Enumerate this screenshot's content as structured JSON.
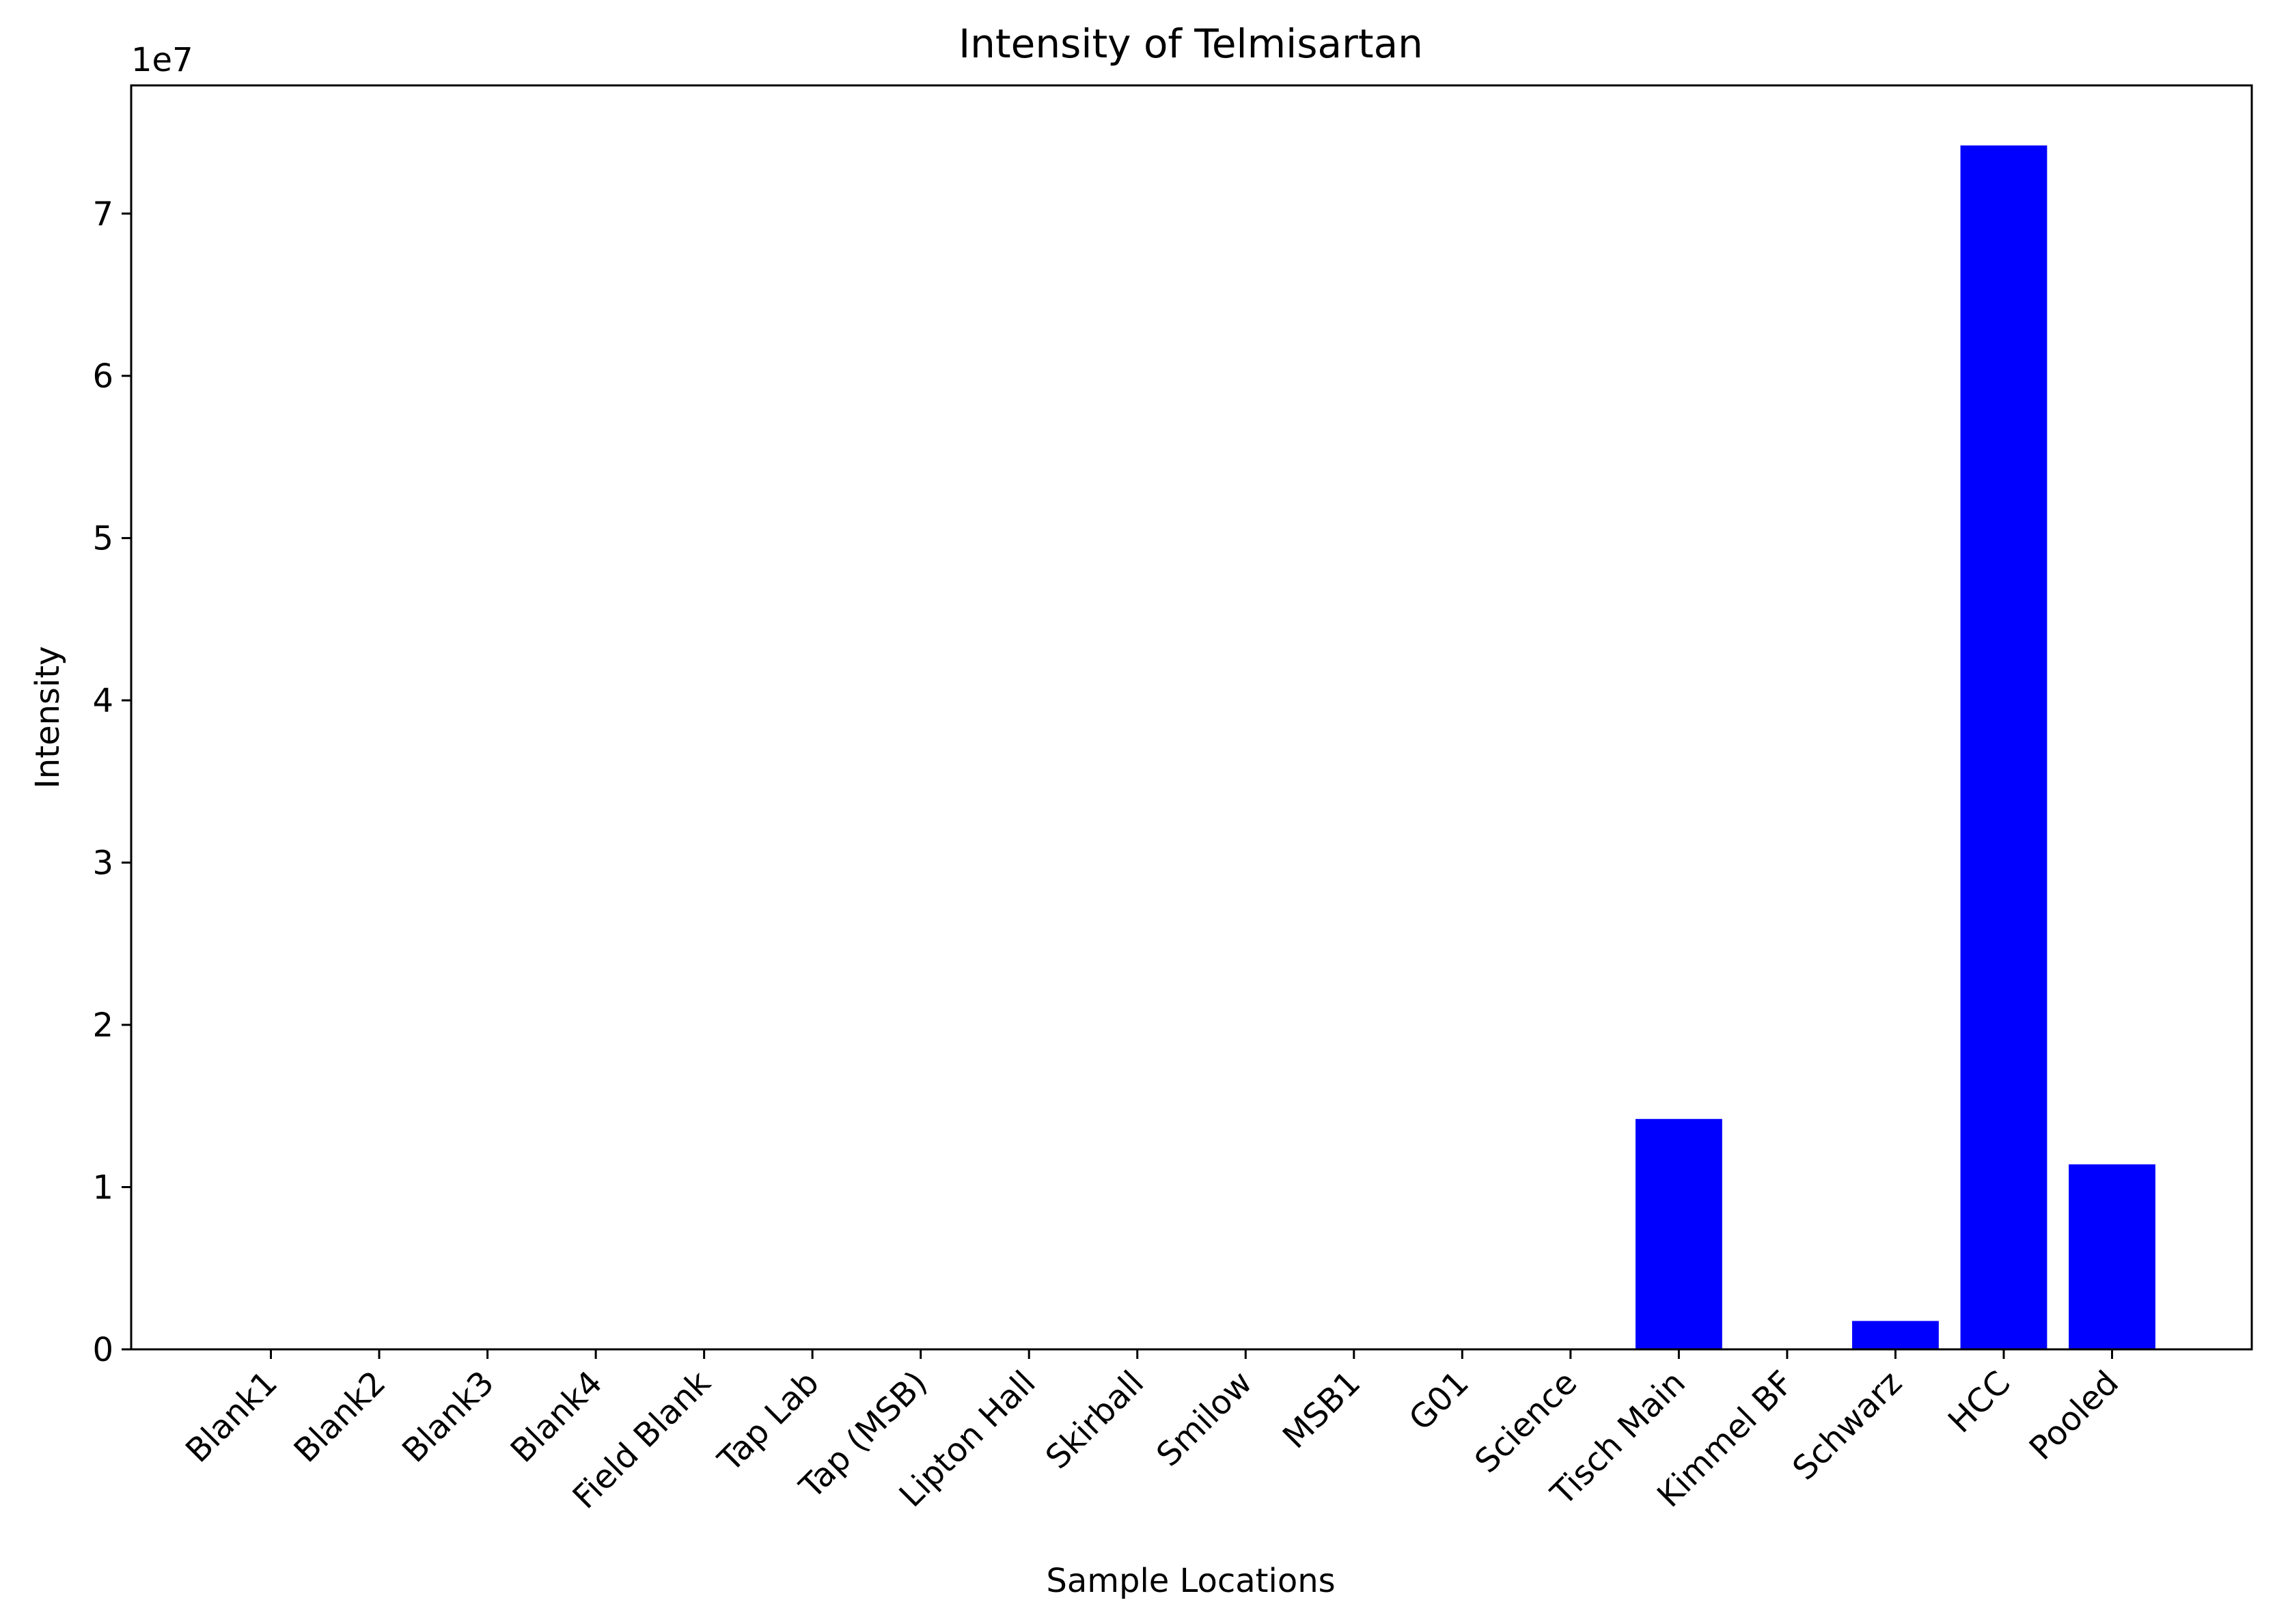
{
  "chart_data": {
    "type": "bar",
    "title": "Intensity of Telmisartan",
    "xlabel": "Sample Locations",
    "ylabel": "Intensity",
    "offset_label": "1e7",
    "categories": [
      "Blank1",
      "Blank2",
      "Blank3",
      "Blank4",
      "Field Blank",
      "Tap Lab",
      "Tap (MSB)",
      "Lipton Hall",
      "Skirball",
      "Smilow",
      "MSB1",
      "G01",
      "Science",
      "Tisch Main",
      "Kimmel BF",
      "Schwarz",
      "HCC",
      "Pooled"
    ],
    "values": [
      0,
      0,
      0,
      0,
      0,
      0,
      0,
      0,
      0,
      0,
      0,
      0,
      0,
      14200000,
      0,
      1750000,
      74200000,
      11400000
    ],
    "yticks": [
      0,
      1,
      2,
      3,
      4,
      5,
      6,
      7
    ],
    "ytick_scale": 10000000,
    "ylim": [
      0,
      77900000
    ],
    "bar_color": "#0000ff",
    "grid": false,
    "legend": "none"
  }
}
